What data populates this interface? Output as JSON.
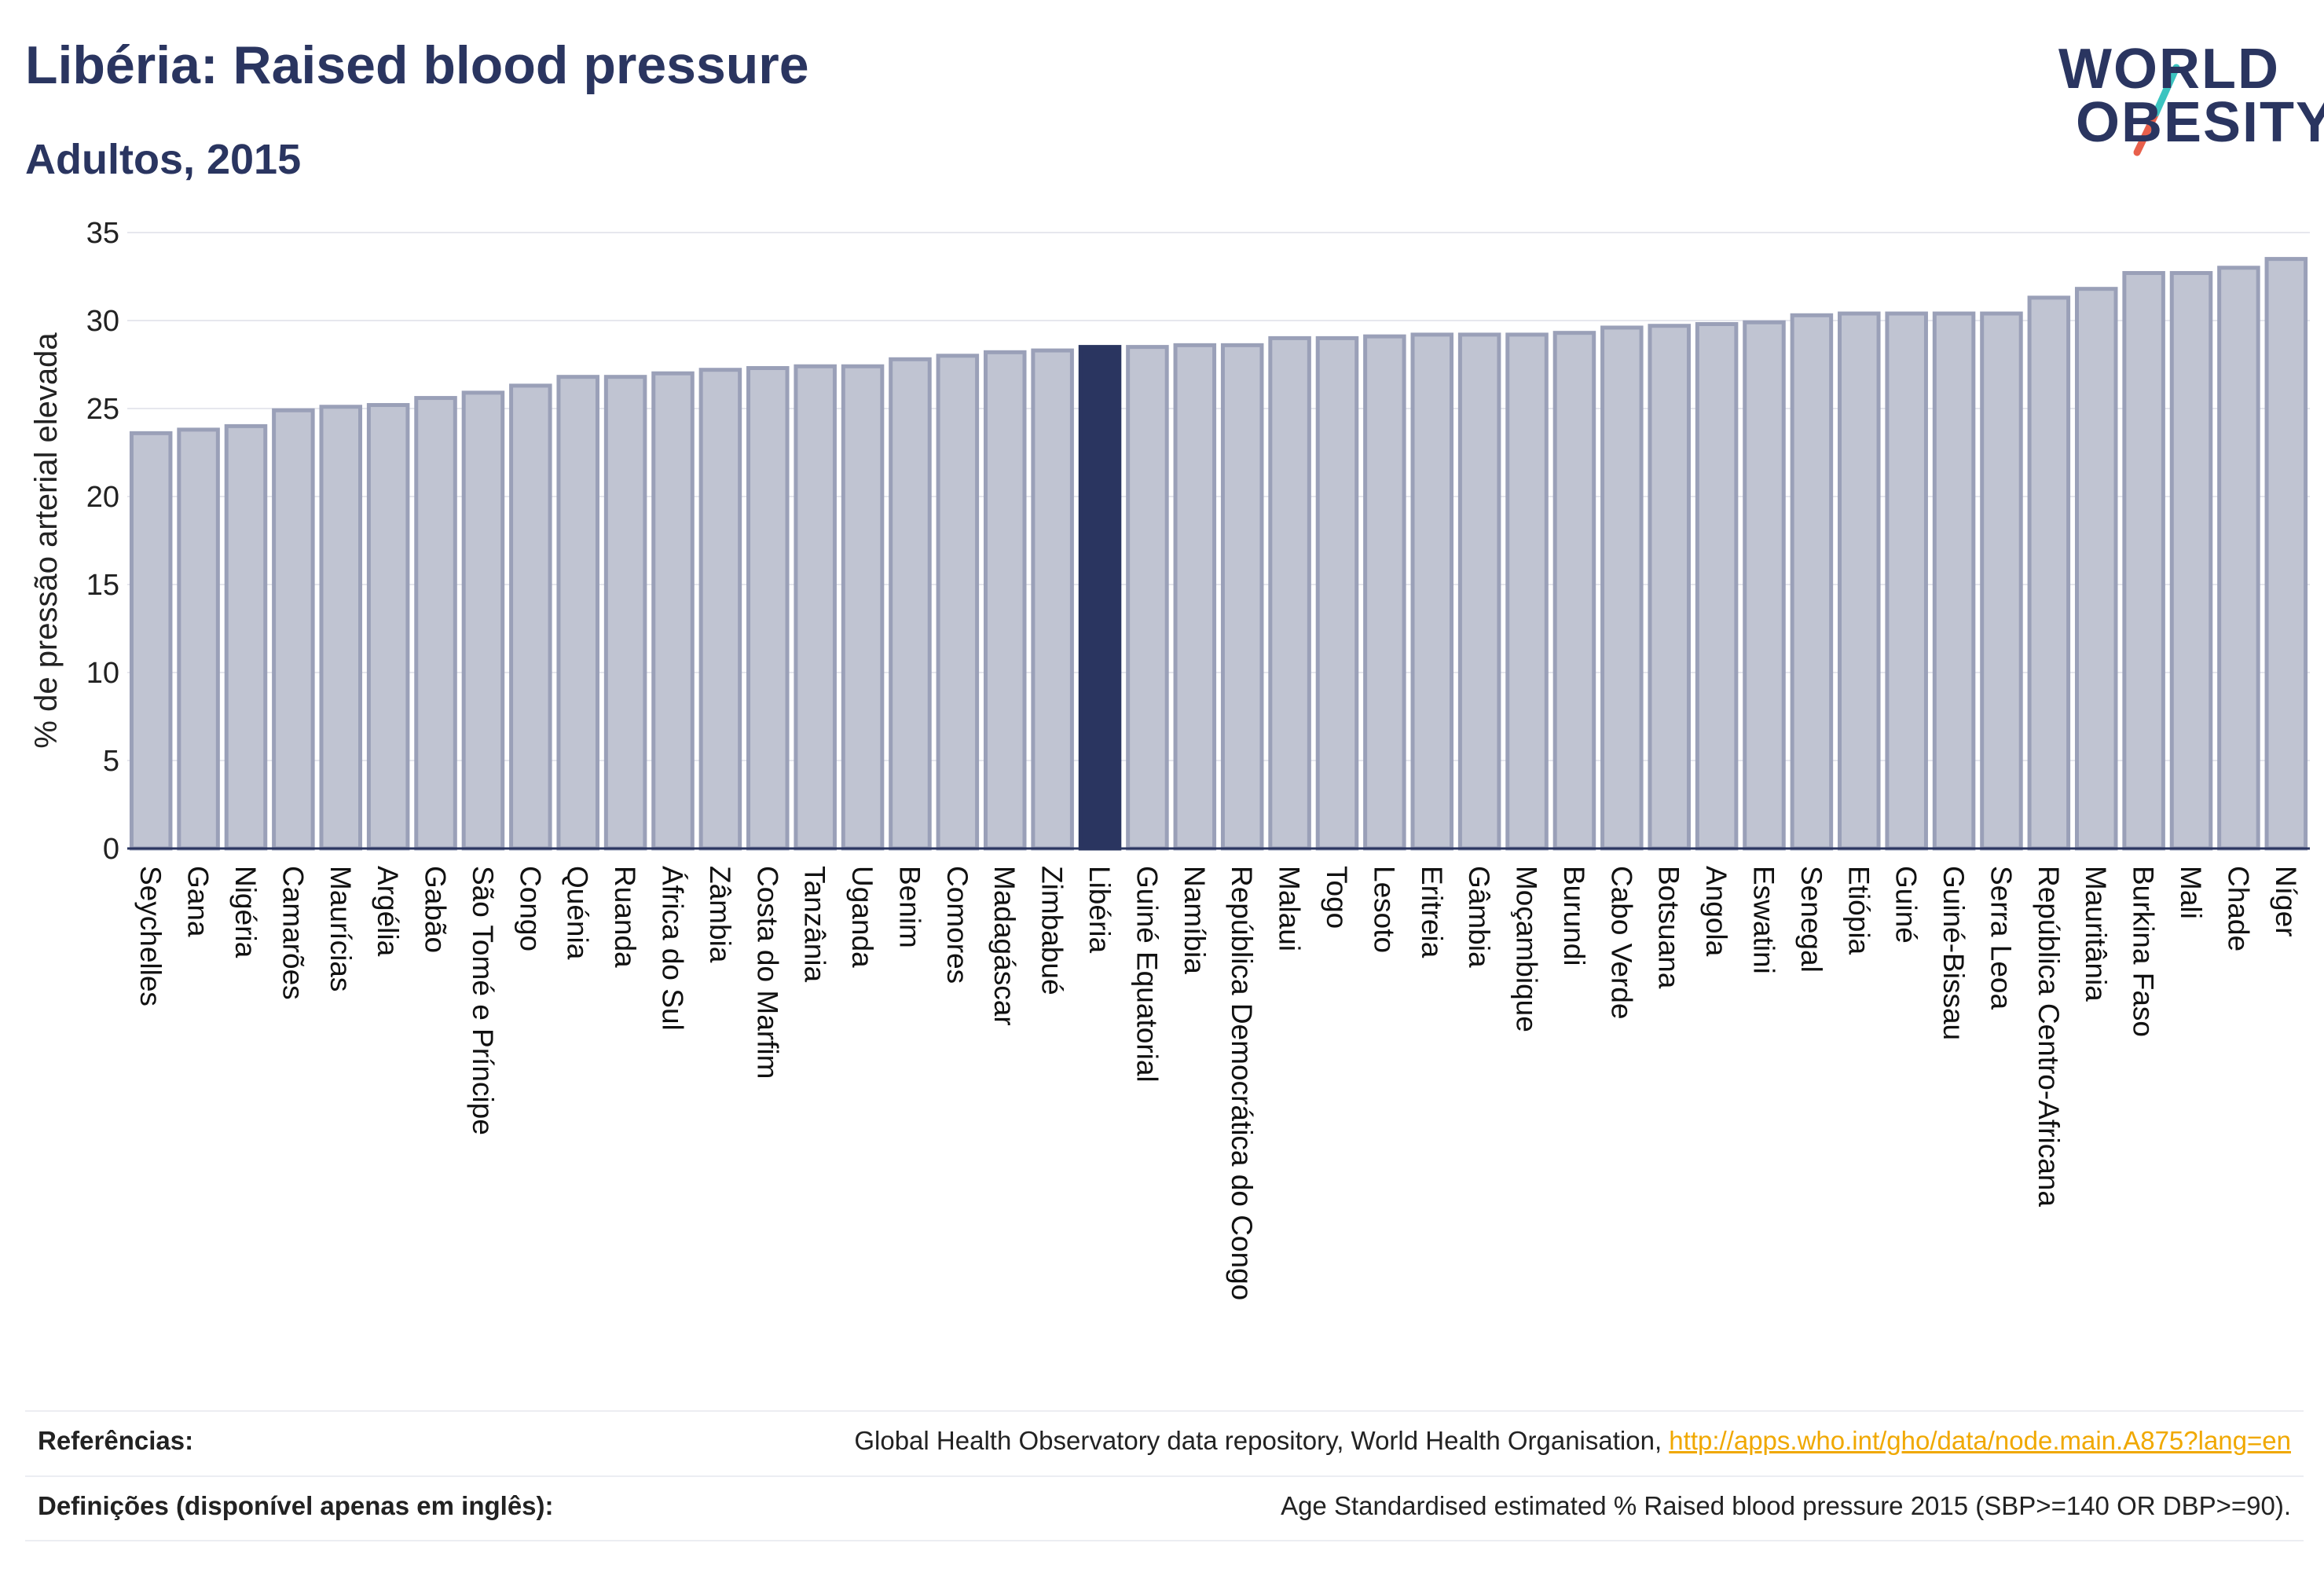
{
  "header": {
    "title": "Libéria: Raised blood pressure",
    "subtitle": "Adultos, 2015"
  },
  "logo": {
    "line1": "WORLD",
    "line2": "OBESITY",
    "slash_colors": [
      "#3cc4c0",
      "#e8604c"
    ]
  },
  "chart_data": {
    "type": "bar",
    "title": "Libéria: Raised blood pressure",
    "ylabel": "% de pressão arterial elevada",
    "xlabel": "",
    "ylim": [
      0,
      35
    ],
    "yticks": [
      0,
      5,
      10,
      15,
      20,
      25,
      30,
      35
    ],
    "grid": true,
    "highlight": "Libéria",
    "colors": {
      "bar": "#c0c4d2",
      "bar_border": "#9aa0b8",
      "highlight": "#2a3560"
    },
    "categories": [
      "Seychelles",
      "Gana",
      "Nigéria",
      "Camarões",
      "Maurícias",
      "Argélia",
      "Gabão",
      "São Tomé e Príncipe",
      "Congo",
      "Quénia",
      "Ruanda",
      "África do Sul",
      "Zâmbia",
      "Costa do Marfim",
      "Tanzânia",
      "Uganda",
      "Benim",
      "Comores",
      "Madagáscar",
      "Zimbabué",
      "Libéria",
      "Guiné Equatorial",
      "Namíbia",
      "República Democrática do Congo",
      "Malaui",
      "Togo",
      "Lesoto",
      "Eritreia",
      "Gâmbia",
      "Moçambique",
      "Burundi",
      "Cabo Verde",
      "Botsuana",
      "Angola",
      "Eswatini",
      "Senegal",
      "Etiópia",
      "Guiné",
      "Guiné-Bissau",
      "Serra Leoa",
      "República Centro-Africana",
      "Mauritânia",
      "Burkina Faso",
      "Mali",
      "Chade",
      "Níger"
    ],
    "values": [
      23.6,
      23.8,
      24.0,
      24.9,
      25.1,
      25.2,
      25.6,
      25.9,
      26.3,
      26.8,
      26.8,
      27.0,
      27.2,
      27.3,
      27.4,
      27.4,
      27.8,
      28.0,
      28.2,
      28.3,
      28.5,
      28.5,
      28.6,
      28.6,
      29.0,
      29.0,
      29.1,
      29.2,
      29.2,
      29.2,
      29.3,
      29.6,
      29.7,
      29.8,
      29.9,
      30.3,
      30.4,
      30.4,
      30.4,
      30.4,
      31.3,
      31.8,
      32.7,
      32.7,
      33.0,
      33.5
    ]
  },
  "footer": {
    "references_label": "Referências:",
    "references_text": "Global Health Observatory data repository, World Health Organisation, ",
    "references_link": "http://apps.who.int/gho/data/node.main.A875?lang=en",
    "definitions_label": "Definições (disponível apenas em inglês):",
    "definitions_text": "Age Standardised estimated % Raised blood pressure 2015 (SBP>=140 OR DBP>=90)."
  }
}
